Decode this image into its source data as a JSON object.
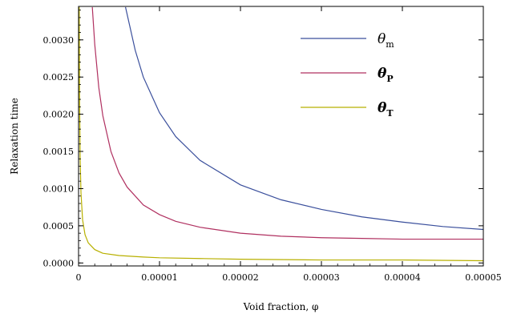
{
  "chart_data": {
    "type": "line",
    "title": "",
    "xlabel": "Void fraction, φ",
    "ylabel": "Relaxation time",
    "xlim": [
      0,
      5e-05
    ],
    "ylim": [
      -4e-05,
      0.00345
    ],
    "x_ticks": [
      0,
      1e-05,
      2e-05,
      3e-05,
      4e-05,
      5e-05
    ],
    "x_tick_labels": [
      "0",
      "0.00001",
      "0.00002",
      "0.00003",
      "0.00004",
      "0.00005"
    ],
    "y_ticks": [
      0,
      0.0005,
      0.001,
      0.0015,
      0.002,
      0.0025,
      0.003
    ],
    "y_tick_labels": [
      "0.0000",
      "0.0005",
      "0.0010",
      "0.0015",
      "0.0020",
      "0.0025",
      "0.0030"
    ],
    "grid": false,
    "legend": "top-right",
    "series": [
      {
        "name": "θ",
        "subscript": "m",
        "color": "#3a4f9c",
        "x": [
          5.8e-06,
          7e-06,
          8e-06,
          1e-05,
          1.2e-05,
          1.5e-05,
          2e-05,
          2.5e-05,
          3e-05,
          3.5e-05,
          4e-05,
          4.5e-05,
          5e-05
        ],
        "y": [
          0.00344,
          0.00286,
          0.0025,
          0.00202,
          0.0017,
          0.00138,
          0.00105,
          0.00085,
          0.00072,
          0.00062,
          0.00055,
          0.00049,
          0.00045
        ]
      },
      {
        "name": "θ",
        "subscript": "P",
        "color": "#b03060",
        "x": [
          1.7e-06,
          2e-06,
          2.5e-06,
          3e-06,
          4e-06,
          5e-06,
          6e-06,
          8e-06,
          1e-05,
          1.2e-05,
          1.5e-05,
          2e-05,
          2.5e-05,
          3e-05,
          3.5e-05,
          4e-05,
          4.5e-05,
          5e-05
        ],
        "y": [
          0.00344,
          0.00294,
          0.00236,
          0.00198,
          0.0015,
          0.00121,
          0.00102,
          0.00078,
          0.00065,
          0.00056,
          0.00048,
          0.0004,
          0.00036,
          0.00034,
          0.00033,
          0.00032,
          0.00032,
          0.00032
        ]
      },
      {
        "name": "θ",
        "subscript": "T",
        "color": "#b8b000",
        "x": [
          8e-08,
          1.2e-07,
          2e-07,
          3e-07,
          5e-07,
          8e-07,
          1.2e-06,
          2e-06,
          3e-06,
          5e-06,
          8e-06,
          1e-05,
          1.5e-05,
          2e-05,
          3e-05,
          4e-05,
          5e-05
        ],
        "y": [
          0.00344,
          0.00229,
          0.00139,
          0.00094,
          0.00058,
          0.00038,
          0.00027,
          0.00018,
          0.00013,
          0.0001,
          8e-05,
          7e-05,
          6e-05,
          5e-05,
          4e-05,
          4e-05,
          3e-05
        ]
      }
    ]
  }
}
